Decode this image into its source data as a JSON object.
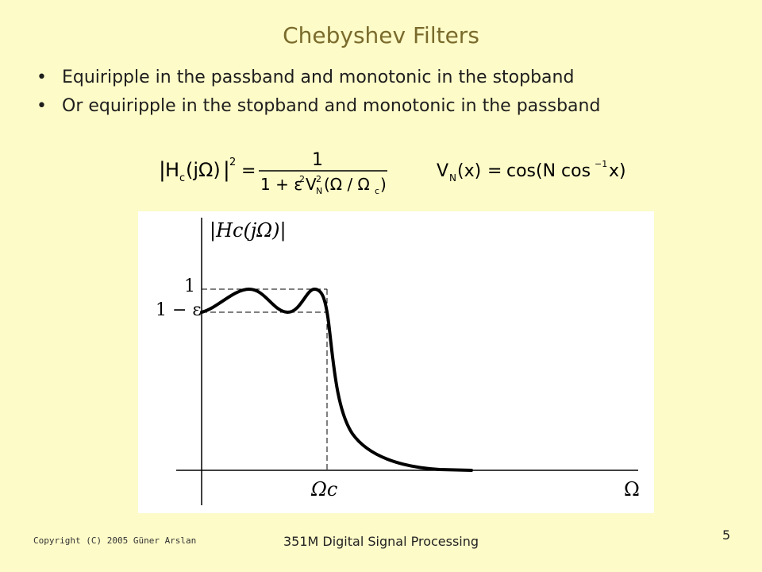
{
  "slide": {
    "title": "Chebyshev Filters",
    "bullets": [
      "Equiripple in the passband and monotonic in the stopband",
      "Or equiripple in the stopband and monotonic in the passband"
    ]
  },
  "equations": {
    "magnitude": {
      "lhs": "Hc(jΩ)",
      "exponent": "2",
      "numerator": "1",
      "denominator_prefix": "1 + ε",
      "denominator_exp": "2",
      "denominator_v": "V",
      "denominator_sub": "N",
      "denominator_sup": "2",
      "denominator_arg": "Ω / Ωc"
    },
    "chebyshev_poly": {
      "lhs": "VN(x)",
      "rhs": "cos(N cos⁻¹ x)"
    }
  },
  "figure": {
    "y_axis_label": "|Hc(jΩ)|",
    "tick_one": "1",
    "tick_one_minus_eps": "1 − ε",
    "x_tick_cutoff": "Ωc",
    "x_axis_label": "Ω"
  },
  "footer": {
    "copyright": "Copyright (C) 2005 Güner Arslan",
    "course": "351M Digital Signal Processing",
    "page": "5"
  }
}
